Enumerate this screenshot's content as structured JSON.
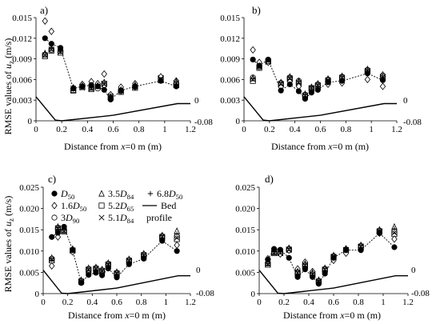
{
  "figure": {
    "shared_ylabel": "RMSE values of u_z (m/s)",
    "shared_xlabel": "Distance from x=0 m (m)"
  },
  "legend": {
    "entries": [
      {
        "marker": "filled-circle",
        "label": "D50"
      },
      {
        "marker": "open-triangle",
        "label": "3.5D84"
      },
      {
        "marker": "plus",
        "label": "6.8D50"
      },
      {
        "marker": "open-diamond",
        "label": "1.6D50"
      },
      {
        "marker": "open-square",
        "label": "5.2D65"
      },
      {
        "marker": "open-circle",
        "label": "3D90"
      },
      {
        "marker": "x",
        "label": "5.1D84"
      },
      {
        "marker": "line",
        "label": "Bed profile"
      }
    ]
  },
  "chart_data": [
    {
      "panel": "a)",
      "type": "scatter",
      "xlabel": "Distance from x=0 m (m)",
      "ylabel": "RMSE values of u_z (m/s)",
      "x_ticks": [
        0,
        0.2,
        0.4,
        0.6,
        0.8,
        1,
        1.2
      ],
      "x_tick_labels": [
        "0",
        "0.2",
        "0.4",
        "0.6",
        "0.8",
        "1",
        "1.2"
      ],
      "y_ticks": [
        0,
        0.003,
        0.006,
        0.009,
        0.012,
        0.015
      ],
      "y_tick_labels": [
        "0",
        "0.003",
        "0.006",
        "0.009",
        "0.012",
        "0.015"
      ],
      "xlim": [
        0,
        1.2
      ],
      "ylim": [
        0,
        0.015
      ],
      "secondary_y_labels": [
        "0",
        "-0.08"
      ],
      "x": [
        0.07,
        0.12,
        0.19,
        0.29,
        0.36,
        0.43,
        0.48,
        0.53,
        0.58,
        0.66,
        0.77,
        0.97,
        1.09
      ],
      "series": [
        {
          "name": "D50",
          "marker": "filled-circle",
          "values": [
            0.012,
            0.0112,
            0.0106,
            0.0047,
            0.005,
            0.0052,
            0.005,
            0.0045,
            0.0031,
            0.0044,
            0.005,
            0.0058,
            0.005
          ]
        },
        {
          "name": "1.6D50",
          "marker": "open-diamond",
          "values": [
            0.0145,
            0.013,
            0.0103,
            0.0048,
            0.0053,
            0.0057,
            0.0054,
            0.0068,
            0.0038,
            0.0049,
            0.0054,
            0.0064,
            0.0058
          ]
        },
        {
          "name": "3D90",
          "marker": "open-circle",
          "values": [
            0.0096,
            0.0103,
            0.0101,
            0.0046,
            0.0052,
            0.0049,
            0.0047,
            0.0052,
            0.0037,
            0.0043,
            0.0049,
            0.006,
            0.0054
          ]
        },
        {
          "name": "3.5D84",
          "marker": "open-triangle",
          "values": [
            0.0098,
            0.0105,
            0.0104,
            0.0045,
            0.0051,
            0.0048,
            0.0051,
            0.0056,
            0.0035,
            0.0045,
            0.0052,
            0.0059,
            0.0057
          ]
        },
        {
          "name": "5.2D65",
          "marker": "open-square",
          "values": [
            0.0094,
            0.0102,
            0.0099,
            0.0044,
            0.0049,
            0.0046,
            0.0049,
            0.0054,
            0.0034,
            0.0042,
            0.0048,
            0.0062,
            0.0052
          ]
        },
        {
          "name": "5.1D84",
          "marker": "x",
          "values": [
            0.0095,
            0.0104,
            0.01,
            0.0047,
            0.0048,
            0.0047,
            0.005,
            0.0053,
            0.0036,
            0.0044,
            0.005,
            0.0061,
            0.0055
          ]
        },
        {
          "name": "6.8D50",
          "marker": "plus",
          "values": [
            0.0099,
            0.0106,
            0.0102,
            0.0046,
            0.005,
            0.0048,
            0.0052,
            0.0055,
            0.0036,
            0.0045,
            0.0051,
            0.006,
            0.0056
          ]
        }
      ],
      "bed_profile": {
        "x": [
          0,
          0.15,
          0.2,
          0.6,
          1.1,
          1.2
        ],
        "y": [
          0.0035,
          0.0001,
          0.0,
          0.0008,
          0.0025,
          0.0025
        ]
      }
    },
    {
      "panel": "b)",
      "type": "scatter",
      "xlabel": "Distance from x=0 m (m)",
      "ylabel": "",
      "x_ticks": [
        0,
        0.2,
        0.4,
        0.6,
        0.8,
        1,
        1.2
      ],
      "x_tick_labels": [
        "0",
        "0.2",
        "0.4",
        "0.6",
        "0.8",
        "1",
        "1.2"
      ],
      "y_ticks": [
        0,
        0.003,
        0.006,
        0.009,
        0.012,
        0.015
      ],
      "y_tick_labels": [
        "0",
        "0.003",
        "0.006",
        "0.009",
        "0.012",
        "0.015"
      ],
      "xlim": [
        0,
        1.2
      ],
      "ylim": [
        0,
        0.015
      ],
      "secondary_y_labels": [
        "0",
        "-0.08"
      ],
      "x": [
        0.07,
        0.12,
        0.19,
        0.29,
        0.36,
        0.43,
        0.48,
        0.53,
        0.58,
        0.66,
        0.77,
        0.97,
        1.09
      ],
      "series": [
        {
          "name": "D50",
          "marker": "filled-circle",
          "values": [
            0.0089,
            0.008,
            0.0089,
            0.0044,
            0.0053,
            0.0043,
            0.0032,
            0.0041,
            0.0045,
            0.0056,
            0.0058,
            0.0069,
            0.0059
          ]
        },
        {
          "name": "1.6D50",
          "marker": "open-diamond",
          "values": [
            0.0103,
            0.0085,
            0.0085,
            0.0049,
            0.0057,
            0.005,
            0.0034,
            0.0044,
            0.0046,
            0.0053,
            0.0055,
            0.006,
            0.005
          ]
        },
        {
          "name": "3D90",
          "marker": "open-circle",
          "values": [
            0.0063,
            0.0078,
            0.0088,
            0.0055,
            0.0063,
            0.0058,
            0.0038,
            0.0048,
            0.0053,
            0.006,
            0.0064,
            0.0074,
            0.0066
          ]
        },
        {
          "name": "3.5D84",
          "marker": "open-triangle",
          "values": [
            0.0062,
            0.008,
            0.0087,
            0.0056,
            0.0064,
            0.0058,
            0.0039,
            0.0049,
            0.0054,
            0.0061,
            0.0065,
            0.0075,
            0.0067
          ]
        },
        {
          "name": "5.2D65",
          "marker": "open-square",
          "values": [
            0.0058,
            0.0077,
            0.0086,
            0.0053,
            0.0061,
            0.0055,
            0.0036,
            0.0047,
            0.0051,
            0.0058,
            0.0062,
            0.0072,
            0.0063
          ]
        },
        {
          "name": "5.1D84",
          "marker": "x",
          "values": [
            0.006,
            0.0079,
            0.0087,
            0.0054,
            0.0062,
            0.0056,
            0.0037,
            0.0048,
            0.0052,
            0.0059,
            0.0063,
            0.0073,
            0.0064
          ]
        },
        {
          "name": "6.8D50",
          "marker": "plus",
          "values": [
            0.0061,
            0.008,
            0.0088,
            0.0055,
            0.0063,
            0.0057,
            0.0038,
            0.0049,
            0.0053,
            0.006,
            0.0064,
            0.0074,
            0.0065
          ]
        }
      ],
      "bed_profile": {
        "x": [
          0,
          0.15,
          0.2,
          0.6,
          1.1,
          1.2
        ],
        "y": [
          0.0035,
          0.0001,
          0.0,
          0.0008,
          0.0025,
          0.0025
        ]
      }
    },
    {
      "panel": "c)",
      "type": "scatter",
      "xlabel": "Distance from x=0 m (m)",
      "ylabel": "RMSE values of u_z (m/s)",
      "x_ticks": [
        0,
        0.2,
        0.4,
        0.6,
        0.8,
        1,
        1.2
      ],
      "x_tick_labels": [
        "0",
        "0.2",
        "0.4",
        "0.6",
        "0.8",
        "1",
        "1.2"
      ],
      "y_ticks": [
        0,
        0.005,
        0.01,
        0.015,
        0.02,
        0.025
      ],
      "y_tick_labels": [
        "0",
        "0.005",
        "0.010",
        "0.015",
        "0.020",
        "0.025"
      ],
      "xlim": [
        0,
        1.2
      ],
      "ylim": [
        0,
        0.025
      ],
      "secondary_y_labels": [
        "0",
        "-0.08"
      ],
      "x": [
        0.07,
        0.12,
        0.17,
        0.24,
        0.31,
        0.37,
        0.43,
        0.48,
        0.53,
        0.6,
        0.7,
        0.82,
        0.97,
        1.09
      ],
      "series": [
        {
          "name": "D50",
          "marker": "filled-circle",
          "values": [
            0.0133,
            0.0143,
            0.0157,
            0.0102,
            0.0025,
            0.0044,
            0.0049,
            0.0043,
            0.0059,
            0.0038,
            0.0069,
            0.0082,
            0.0124,
            0.01
          ]
        },
        {
          "name": "1.6D50",
          "marker": "open-diamond",
          "values": [
            0.0065,
            0.0133,
            0.0151,
            0.0098,
            0.0028,
            0.0048,
            0.0053,
            0.0047,
            0.0063,
            0.0042,
            0.0073,
            0.0086,
            0.0128,
            0.0114
          ]
        },
        {
          "name": "3D90",
          "marker": "open-circle",
          "values": [
            0.0082,
            0.0155,
            0.0148,
            0.0103,
            0.003,
            0.0058,
            0.006,
            0.0055,
            0.007,
            0.0049,
            0.0079,
            0.0092,
            0.0135,
            0.0135
          ]
        },
        {
          "name": "3.5D84",
          "marker": "open-triangle",
          "values": [
            0.0084,
            0.0157,
            0.015,
            0.0105,
            0.0032,
            0.006,
            0.0062,
            0.0057,
            0.0072,
            0.0051,
            0.0081,
            0.0094,
            0.0137,
            0.0147
          ]
        },
        {
          "name": "5.2D65",
          "marker": "open-square",
          "values": [
            0.0078,
            0.0152,
            0.0146,
            0.0101,
            0.0028,
            0.0056,
            0.0058,
            0.0053,
            0.0068,
            0.0047,
            0.0077,
            0.009,
            0.0132,
            0.0128
          ]
        },
        {
          "name": "5.1D84",
          "marker": "x",
          "values": [
            0.008,
            0.0154,
            0.0147,
            0.0102,
            0.0029,
            0.0057,
            0.0059,
            0.0054,
            0.0069,
            0.0048,
            0.0078,
            0.0091,
            0.0134,
            0.0131
          ]
        },
        {
          "name": "6.8D50",
          "marker": "plus",
          "values": [
            0.0081,
            0.0155,
            0.0149,
            0.0104,
            0.003,
            0.0058,
            0.006,
            0.0055,
            0.007,
            0.0049,
            0.0079,
            0.0092,
            0.0136,
            0.014
          ]
        }
      ],
      "bed_profile": {
        "x": [
          0,
          0.15,
          0.2,
          0.6,
          1.1,
          1.2
        ],
        "y": [
          0.0055,
          0.0001,
          0.0,
          0.0013,
          0.0042,
          0.0042
        ]
      }
    },
    {
      "panel": "d)",
      "type": "scatter",
      "xlabel": "Distance from x=0 m (m)",
      "ylabel": "",
      "x_ticks": [
        0,
        0.2,
        0.4,
        0.6,
        0.8,
        1,
        1.2
      ],
      "x_tick_labels": [
        "0",
        "0.2",
        "0.4",
        "0.6",
        "0.8",
        "1",
        "1.2"
      ],
      "y_ticks": [
        0,
        0.005,
        0.01,
        0.015,
        0.02,
        0.025
      ],
      "y_tick_labels": [
        "0",
        "0.005",
        "0.010",
        "0.015",
        "0.020",
        "0.025"
      ],
      "xlim": [
        0,
        1.2
      ],
      "ylim": [
        0,
        0.025
      ],
      "secondary_y_labels": [
        "0",
        "-0.08"
      ],
      "x": [
        0.07,
        0.12,
        0.17,
        0.24,
        0.31,
        0.37,
        0.43,
        0.48,
        0.53,
        0.6,
        0.7,
        0.82,
        0.97,
        1.09
      ],
      "series": [
        {
          "name": "D50",
          "marker": "filled-circle",
          "values": [
            0.008,
            0.0105,
            0.0103,
            0.0084,
            0.0039,
            0.0057,
            0.0039,
            0.0023,
            0.0047,
            0.0084,
            0.0102,
            0.0102,
            0.0142,
            0.0109
          ]
        },
        {
          "name": "1.6D50",
          "marker": "open-diamond",
          "values": [
            0.0082,
            0.01,
            0.0093,
            0.0102,
            0.0058,
            0.0074,
            0.0052,
            0.0028,
            0.0052,
            0.0078,
            0.0095,
            0.0108,
            0.0142,
            0.0128
          ]
        },
        {
          "name": "3D90",
          "marker": "open-circle",
          "values": [
            0.0071,
            0.0097,
            0.0097,
            0.0105,
            0.005,
            0.0068,
            0.0047,
            0.003,
            0.0058,
            0.0088,
            0.0104,
            0.0112,
            0.0148,
            0.0147
          ]
        },
        {
          "name": "3.5D84",
          "marker": "open-triangle",
          "values": [
            0.0073,
            0.0099,
            0.0099,
            0.0107,
            0.0052,
            0.007,
            0.0049,
            0.0032,
            0.006,
            0.009,
            0.0106,
            0.0114,
            0.015,
            0.0157
          ]
        },
        {
          "name": "5.2D65",
          "marker": "open-square",
          "values": [
            0.0068,
            0.0095,
            0.0095,
            0.0103,
            0.0048,
            0.0066,
            0.0045,
            0.0028,
            0.0056,
            0.0086,
            0.0102,
            0.011,
            0.0146,
            0.014
          ]
        },
        {
          "name": "5.1D84",
          "marker": "x",
          "values": [
            0.0069,
            0.0096,
            0.0096,
            0.0104,
            0.0049,
            0.0067,
            0.0046,
            0.0029,
            0.0057,
            0.0087,
            0.0103,
            0.0111,
            0.0147,
            0.0143
          ]
        },
        {
          "name": "6.8D50",
          "marker": "plus",
          "values": [
            0.007,
            0.0098,
            0.0098,
            0.0106,
            0.0051,
            0.0069,
            0.0048,
            0.0031,
            0.0059,
            0.0089,
            0.0105,
            0.0113,
            0.0149,
            0.0152
          ]
        }
      ],
      "bed_profile": {
        "x": [
          0,
          0.15,
          0.2,
          0.6,
          1.1,
          1.2
        ],
        "y": [
          0.0055,
          0.0001,
          0.0,
          0.0013,
          0.0042,
          0.0042
        ]
      }
    }
  ]
}
